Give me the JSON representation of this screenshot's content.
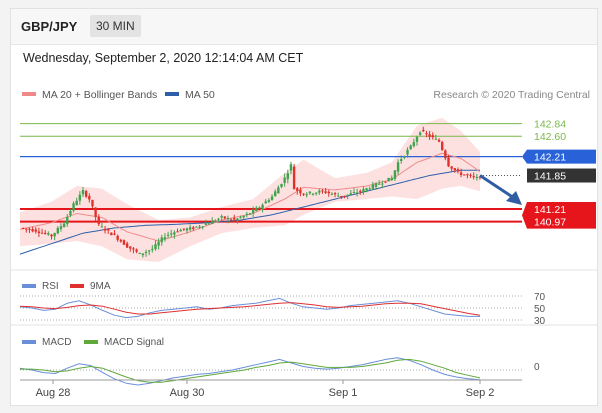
{
  "header": {
    "symbol": "GBP/JPY",
    "timeframe": "30 MIN"
  },
  "date_line": "Wednesday, September 2, 2020 12:14:04 AM CET",
  "legend": {
    "ma_bb": "MA 20 + Bollinger Bands",
    "ma50": "MA 50",
    "credit": "Research © 2020 Trading Central"
  },
  "colors": {
    "up": "#3fa34d",
    "down": "#e0312a",
    "ma20": "#f08a8a",
    "ma50": "#2e5ea8",
    "bb_fill": "#fde1e1",
    "resistance": "#7ab84a",
    "pivot": "#2962d8",
    "support": "#e5151b",
    "current": "#333333",
    "rsi": "#6a8fd8",
    "rsi_ma": "#e03030",
    "macd": "#6a8fd8",
    "macd_signal": "#5fa83a",
    "arrow": "#2f5ea3"
  },
  "chart_data": [
    {
      "type": "candlestick",
      "panel": "price",
      "ylim": [
        140.2,
        143.1
      ],
      "x_ticks": [
        "Aug 28",
        "Aug 30",
        "Sep 1",
        "Sep 2"
      ],
      "levels": [
        {
          "value": 142.84,
          "label": "142.84",
          "role": "resistance"
        },
        {
          "value": 142.6,
          "label": "142.60",
          "role": "resistance"
        },
        {
          "value": 142.21,
          "label": "142.21",
          "role": "pivot"
        },
        {
          "value": 141.85,
          "label": "141.85",
          "role": "current"
        },
        {
          "value": 141.21,
          "label": "141.21",
          "role": "support"
        },
        {
          "value": 140.97,
          "label": "140.97",
          "role": "support"
        }
      ],
      "close_path": [
        [
          0,
          140.85
        ],
        [
          5,
          140.8
        ],
        [
          10,
          140.7
        ],
        [
          14,
          140.95
        ],
        [
          17,
          141.3
        ],
        [
          20,
          141.55
        ],
        [
          22,
          141.4
        ],
        [
          25,
          140.9
        ],
        [
          30,
          140.7
        ],
        [
          34,
          140.5
        ],
        [
          38,
          140.35
        ],
        [
          42,
          140.45
        ],
        [
          46,
          140.7
        ],
        [
          50,
          140.8
        ],
        [
          55,
          140.85
        ],
        [
          60,
          140.95
        ],
        [
          64,
          141.05
        ],
        [
          68,
          141.0
        ],
        [
          72,
          141.1
        ],
        [
          76,
          141.25
        ],
        [
          80,
          141.45
        ],
        [
          84,
          141.8
        ],
        [
          86,
          142.05
        ],
        [
          87,
          141.6
        ],
        [
          90,
          141.5
        ],
        [
          96,
          141.55
        ],
        [
          102,
          141.45
        ],
        [
          108,
          141.55
        ],
        [
          114,
          141.7
        ],
        [
          118,
          141.8
        ],
        [
          120,
          142.1
        ],
        [
          124,
          142.4
        ],
        [
          127,
          142.7
        ],
        [
          130,
          142.6
        ],
        [
          133,
          142.5
        ],
        [
          136,
          142.05
        ],
        [
          139,
          141.9
        ],
        [
          142,
          141.85
        ],
        [
          145,
          141.8
        ],
        [
          146,
          141.85
        ]
      ],
      "ma50_path": [
        [
          0,
          140.35
        ],
        [
          10,
          140.55
        ],
        [
          20,
          140.75
        ],
        [
          30,
          140.85
        ],
        [
          40,
          140.9
        ],
        [
          50,
          140.92
        ],
        [
          60,
          140.95
        ],
        [
          70,
          141.0
        ],
        [
          80,
          141.1
        ],
        [
          90,
          141.25
        ],
        [
          100,
          141.4
        ],
        [
          110,
          141.55
        ],
        [
          120,
          141.7
        ],
        [
          130,
          141.85
        ],
        [
          140,
          141.95
        ],
        [
          146,
          141.95
        ]
      ],
      "bollinger": {
        "upper": [
          [
            0,
            141.15
          ],
          [
            10,
            141.35
          ],
          [
            18,
            141.65
          ],
          [
            26,
            141.6
          ],
          [
            34,
            141.3
          ],
          [
            44,
            141.0
          ],
          [
            54,
            141.05
          ],
          [
            64,
            141.25
          ],
          [
            74,
            141.4
          ],
          [
            84,
            141.9
          ],
          [
            90,
            142.15
          ],
          [
            100,
            141.8
          ],
          [
            110,
            141.9
          ],
          [
            118,
            142.1
          ],
          [
            126,
            142.8
          ],
          [
            134,
            142.95
          ],
          [
            140,
            142.7
          ],
          [
            146,
            142.3
          ]
        ],
        "lower": [
          [
            0,
            140.5
          ],
          [
            10,
            140.55
          ],
          [
            18,
            140.6
          ],
          [
            26,
            140.5
          ],
          [
            34,
            140.25
          ],
          [
            44,
            140.2
          ],
          [
            54,
            140.5
          ],
          [
            64,
            140.75
          ],
          [
            74,
            140.85
          ],
          [
            84,
            140.9
          ],
          [
            90,
            141.1
          ],
          [
            100,
            141.35
          ],
          [
            110,
            141.4
          ],
          [
            118,
            141.45
          ],
          [
            126,
            141.4
          ],
          [
            134,
            141.6
          ],
          [
            140,
            141.65
          ],
          [
            146,
            141.55
          ]
        ]
      }
    },
    {
      "type": "line",
      "panel": "RSI",
      "ylim": [
        25,
        75
      ],
      "levels": [
        70,
        50,
        30
      ],
      "series": [
        {
          "name": "RSI",
          "values": [
            52,
            50,
            46,
            48,
            58,
            62,
            55,
            46,
            38,
            34,
            36,
            42,
            46,
            48,
            50,
            52,
            48,
            50,
            54,
            56,
            58,
            62,
            66,
            58,
            52,
            50,
            48,
            50,
            54,
            56,
            58,
            60,
            62,
            58,
            52,
            46,
            40,
            38,
            36,
            36
          ]
        },
        {
          "name": "9MA",
          "values": [
            53,
            52,
            50,
            49,
            51,
            54,
            55,
            53,
            48,
            43,
            40,
            40,
            42,
            44,
            46,
            48,
            49,
            50,
            51,
            52,
            54,
            56,
            58,
            59,
            57,
            55,
            52,
            51,
            52,
            53,
            55,
            57,
            58,
            58,
            57,
            53,
            49,
            45,
            41,
            38
          ]
        }
      ]
    },
    {
      "type": "line",
      "panel": "MACD",
      "ylim": [
        -0.25,
        0.25
      ],
      "levels": [
        0
      ],
      "series": [
        {
          "name": "MACD",
          "values": [
            0.02,
            0.0,
            -0.03,
            -0.04,
            0.02,
            0.07,
            0.05,
            -0.03,
            -0.1,
            -0.15,
            -0.17,
            -0.15,
            -0.12,
            -0.09,
            -0.07,
            -0.05,
            -0.04,
            -0.02,
            0.0,
            0.03,
            0.06,
            0.09,
            0.12,
            0.08,
            0.04,
            0.02,
            0.01,
            0.02,
            0.04,
            0.06,
            0.09,
            0.12,
            0.14,
            0.11,
            0.06,
            0.0,
            -0.05,
            -0.08,
            -0.1,
            -0.11
          ]
        },
        {
          "name": "MACD Signal",
          "values": [
            0.01,
            0.01,
            0.0,
            -0.02,
            -0.01,
            0.02,
            0.04,
            0.02,
            -0.03,
            -0.08,
            -0.12,
            -0.14,
            -0.14,
            -0.12,
            -0.1,
            -0.08,
            -0.06,
            -0.04,
            -0.02,
            0.0,
            0.03,
            0.05,
            0.08,
            0.09,
            0.07,
            0.05,
            0.03,
            0.03,
            0.03,
            0.04,
            0.06,
            0.08,
            0.11,
            0.12,
            0.1,
            0.06,
            0.02,
            -0.03,
            -0.06,
            -0.09
          ]
        }
      ]
    }
  ],
  "indicator_legend": {
    "rsi": "RSI",
    "rsi_ma": "9MA",
    "macd": "MACD",
    "macd_signal": "MACD Signal"
  },
  "rsi_labels": [
    "70",
    "50",
    "30"
  ],
  "macd_label": "0"
}
